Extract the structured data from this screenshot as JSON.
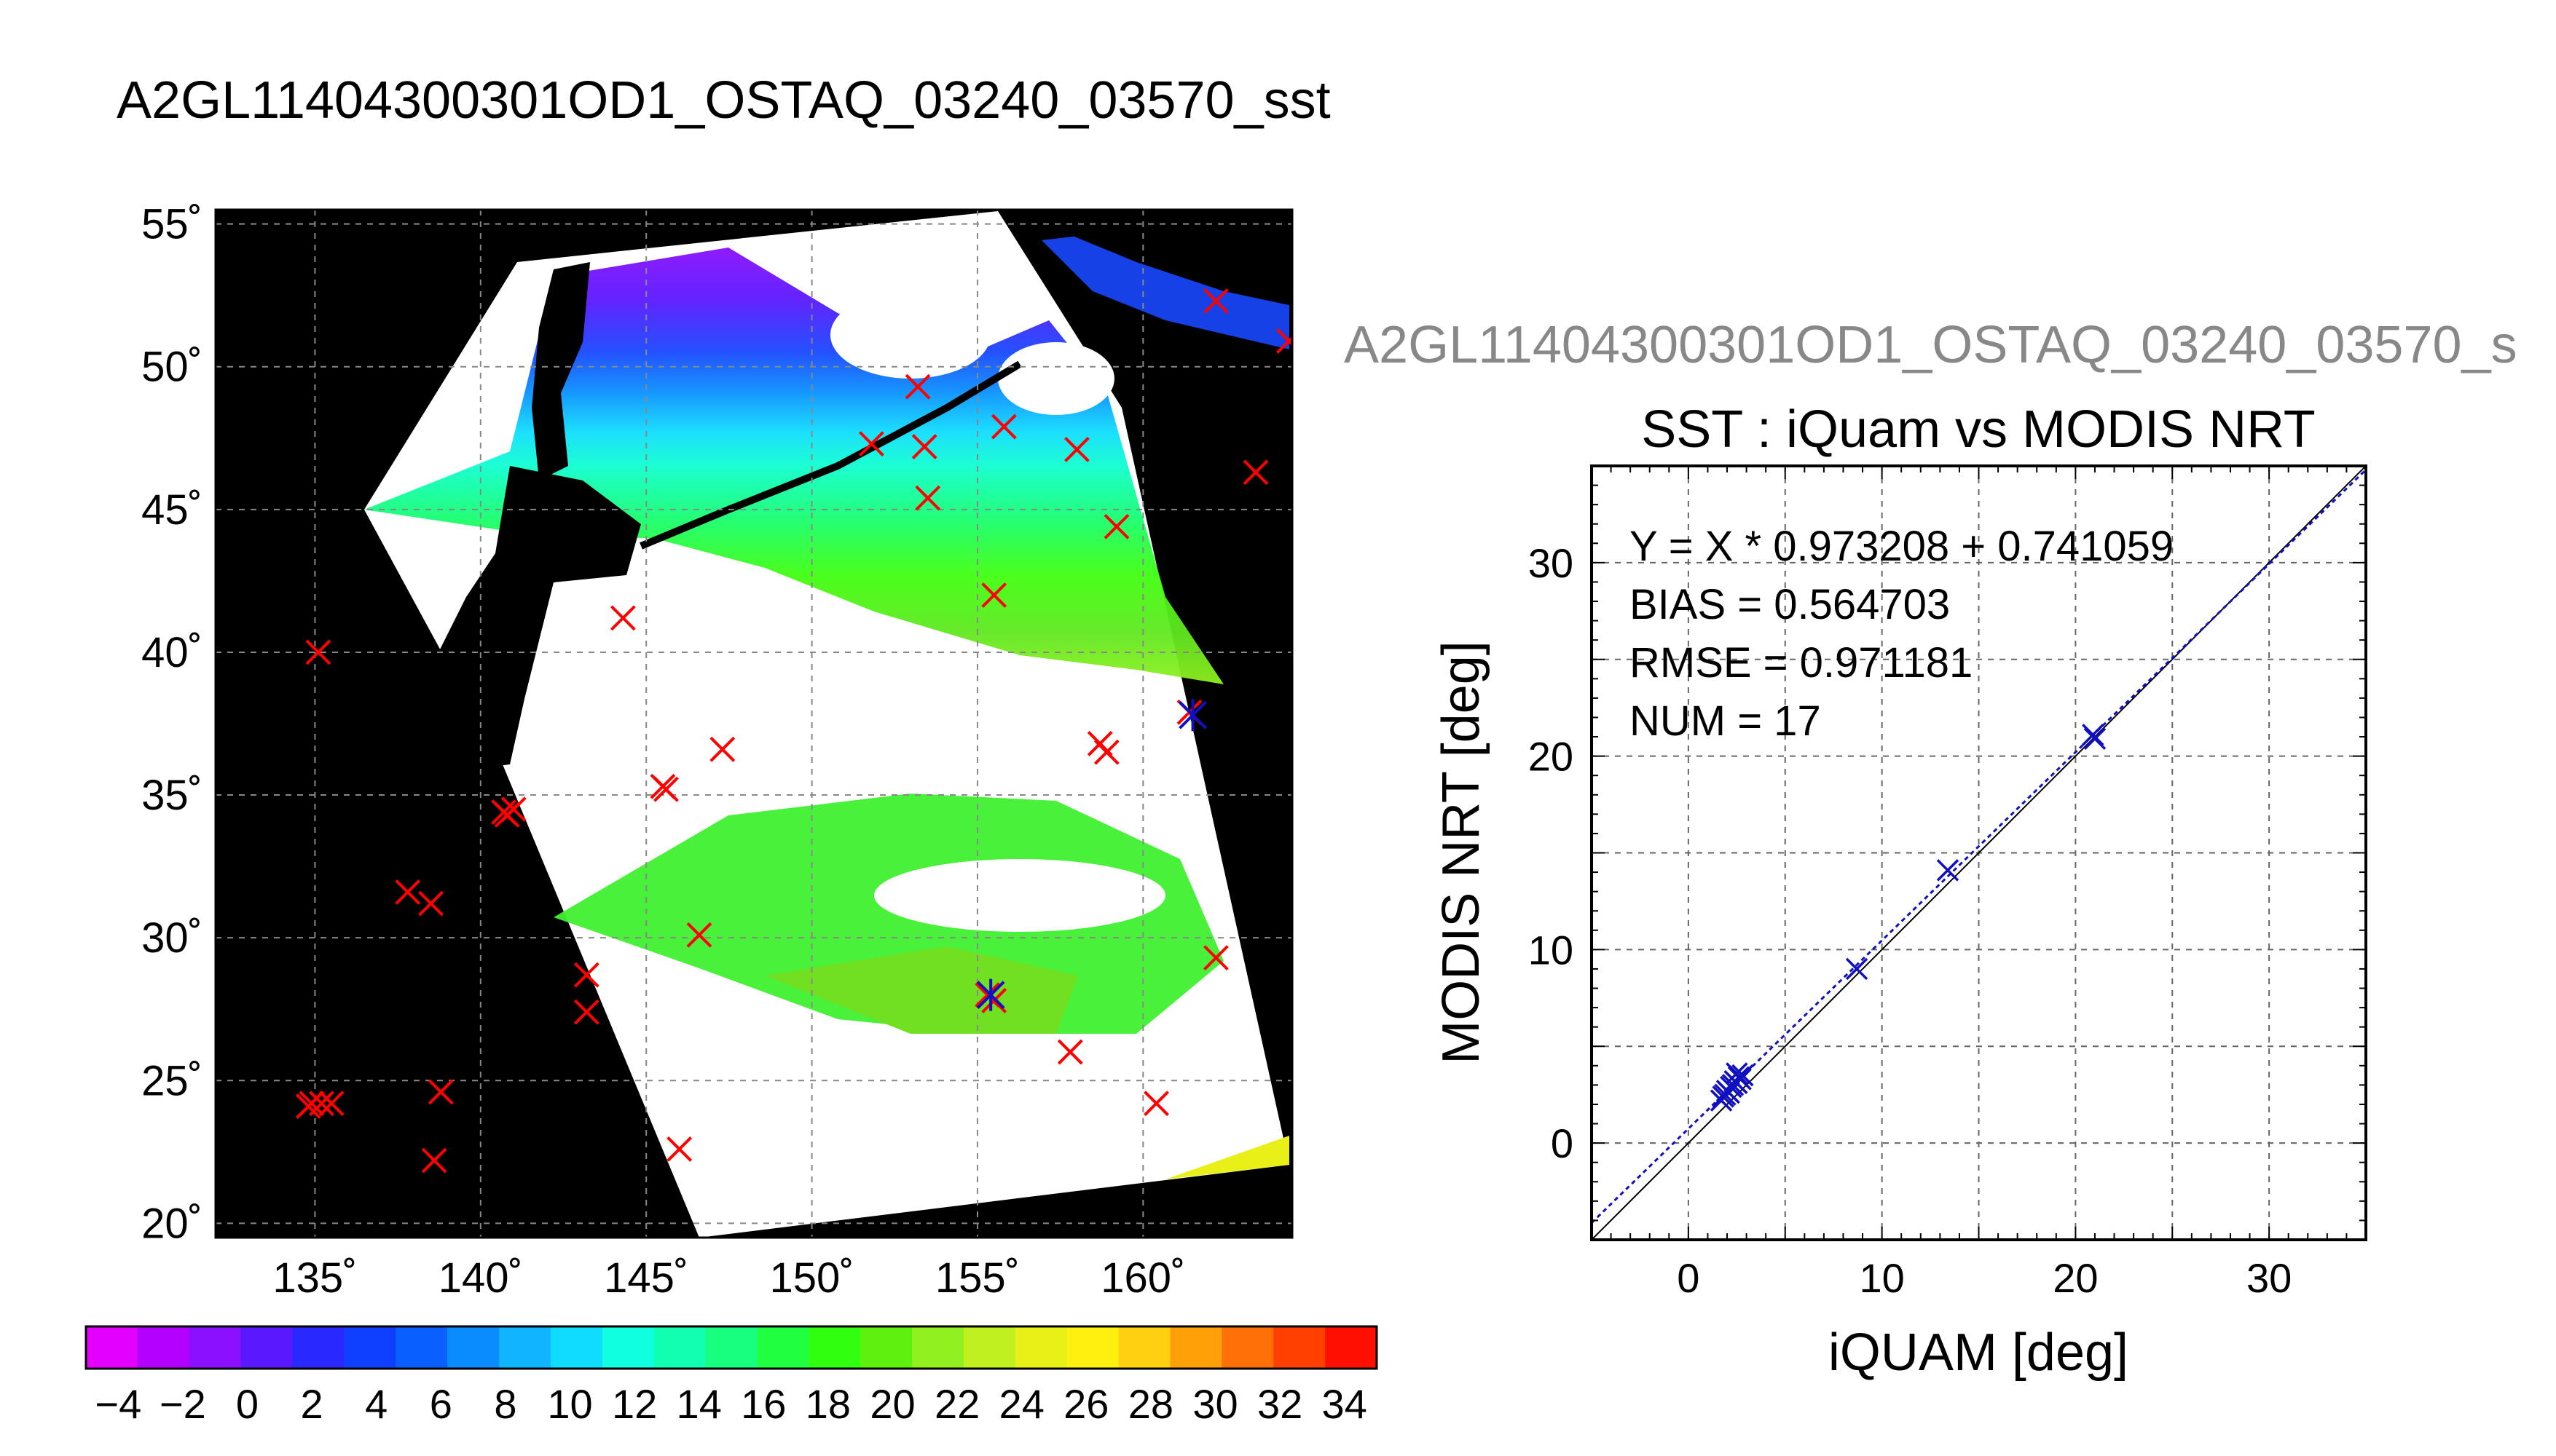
{
  "map": {
    "title": "A2GL11404300301OD1_OSTAQ_03240_03570_sst",
    "lon_ticks": [
      135,
      140,
      145,
      150,
      155,
      160
    ],
    "lat_ticks": [
      20,
      25,
      30,
      35,
      40,
      45,
      50,
      55
    ],
    "lon_range": [
      132,
      164.5
    ],
    "lat_range": [
      19.5,
      55.5
    ],
    "deg_symbol": "˚",
    "colors": {
      "land": "#000000",
      "no_data": "#ffffff",
      "marker": "#ff0000",
      "matched_marker": "#1010c0",
      "grid": "#888888"
    }
  },
  "colorbar": {
    "labels": [
      "−4",
      "−2",
      "0",
      "2",
      "4",
      "6",
      "8",
      "10",
      "12",
      "14",
      "16",
      "18",
      "20",
      "22",
      "24",
      "26",
      "28",
      "30",
      "32",
      "34"
    ],
    "range": [
      -5,
      35
    ],
    "colors": [
      "#e400ff",
      "#b400ff",
      "#8a10ff",
      "#5a18ff",
      "#2828ff",
      "#1040ff",
      "#0a60ff",
      "#0a8cff",
      "#10b4ff",
      "#10dcff",
      "#10ffe0",
      "#10ffb0",
      "#18ff80",
      "#20ff40",
      "#30ff10",
      "#60f010",
      "#90f020",
      "#c0f020",
      "#e8f018",
      "#fff010",
      "#ffd010",
      "#ffa008",
      "#ff7008",
      "#ff4000",
      "#ff1000"
    ]
  },
  "chart_data": {
    "type": "scatter",
    "panel_title": "A2GL11404300301OD1_OSTAQ_03240_03570_s",
    "title": "SST : iQuam vs MODIS NRT",
    "xlabel": "iQUAM [deg]",
    "ylabel": "MODIS NRT [deg]",
    "xlim": [
      -5,
      35
    ],
    "ylim": [
      -5,
      35
    ],
    "xticks": [
      0,
      10,
      20,
      30
    ],
    "yticks": [
      0,
      10,
      20,
      30
    ],
    "grid": true,
    "stats": [
      "Y = X * 0.973208 + 0.741059",
      "BIAS = 0.564703",
      "RMSE = 0.971181",
      "NUM = 17"
    ],
    "fit": {
      "slope": 0.973208,
      "intercept": 0.741059
    },
    "points": [
      {
        "x": 1.7,
        "y": 2.2
      },
      {
        "x": 1.8,
        "y": 2.4
      },
      {
        "x": 2.0,
        "y": 2.7
      },
      {
        "x": 2.1,
        "y": 2.6
      },
      {
        "x": 2.3,
        "y": 3.0
      },
      {
        "x": 2.4,
        "y": 3.2
      },
      {
        "x": 2.5,
        "y": 3.1
      },
      {
        "x": 2.6,
        "y": 3.4
      },
      {
        "x": 2.7,
        "y": 3.3
      },
      {
        "x": 2.2,
        "y": 2.9
      },
      {
        "x": 2.8,
        "y": 3.5
      },
      {
        "x": 8.7,
        "y": 9.0
      },
      {
        "x": 13.4,
        "y": 14.1
      },
      {
        "x": 20.9,
        "y": 21.1
      },
      {
        "x": 21.0,
        "y": 20.9
      },
      {
        "x": 1.9,
        "y": 2.5
      },
      {
        "x": 2.5,
        "y": 3.6
      }
    ]
  },
  "map_markers": [
    [
      135.1,
      40.0
    ],
    [
      134.9,
      24.2
    ],
    [
      135.2,
      24.2
    ],
    [
      135.5,
      24.2
    ],
    [
      134.8,
      24.1
    ],
    [
      137.8,
      31.6
    ],
    [
      138.5,
      31.2
    ],
    [
      138.8,
      24.6
    ],
    [
      138.6,
      22.2
    ],
    [
      140.7,
      34.4
    ],
    [
      141.0,
      34.5
    ],
    [
      140.8,
      34.3
    ],
    [
      143.2,
      28.7
    ],
    [
      143.2,
      27.4
    ],
    [
      144.3,
      41.2
    ],
    [
      145.5,
      35.3
    ],
    [
      145.6,
      35.2
    ],
    [
      146.0,
      22.6
    ],
    [
      146.6,
      30.1
    ],
    [
      147.3,
      36.6
    ],
    [
      151.8,
      47.3
    ],
    [
      153.2,
      49.3
    ],
    [
      153.4,
      47.2
    ],
    [
      153.5,
      45.4
    ],
    [
      155.5,
      42.0
    ],
    [
      155.8,
      47.9
    ],
    [
      155.3,
      28.0
    ],
    [
      155.5,
      27.8
    ],
    [
      157.8,
      26.0
    ],
    [
      158.0,
      47.1
    ],
    [
      158.7,
      36.8
    ],
    [
      158.9,
      36.5
    ],
    [
      159.2,
      44.4
    ],
    [
      160.4,
      24.2
    ],
    [
      161.4,
      37.9
    ],
    [
      162.2,
      52.3
    ],
    [
      162.2,
      29.3
    ],
    [
      163.4,
      46.3
    ],
    [
      164.4,
      50.9
    ]
  ],
  "map_matched_markers": [
    [
      155.4,
      28.0
    ],
    [
      161.5,
      37.8
    ]
  ]
}
